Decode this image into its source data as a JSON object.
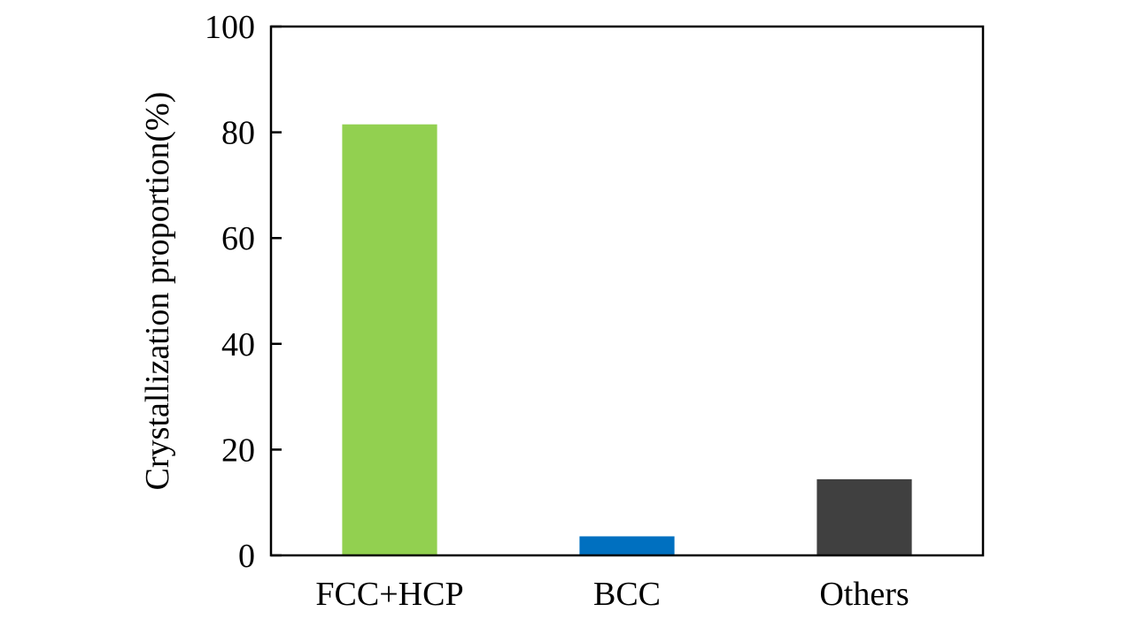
{
  "chart_data": {
    "type": "bar",
    "categories": [
      "FCC+HCP",
      "BCC",
      "Others"
    ],
    "values": [
      81.5,
      3.6,
      14.4
    ],
    "colors": [
      "#92d050",
      "#0070c0",
      "#404040"
    ],
    "title": "",
    "xlabel": "",
    "ylabel": "Crystallization proportion(%)",
    "ylim": [
      0,
      100
    ],
    "yticks": [
      0,
      20,
      40,
      60,
      80,
      100
    ],
    "grid": false,
    "legend": "none"
  }
}
